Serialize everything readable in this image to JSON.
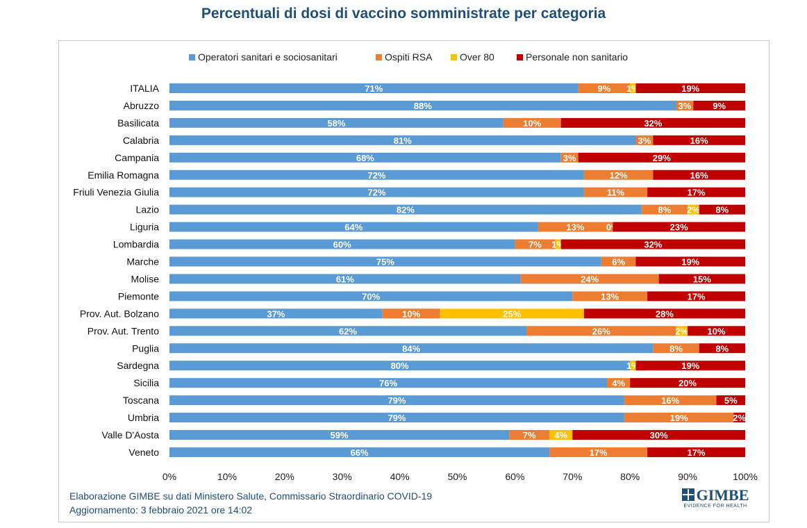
{
  "page": {
    "title": "Percentuali di dosi di vaccino somministrate per categoria",
    "source_line1": "Elaborazione GIMBE su dati Ministero Salute, Commissario Straordinario COVID-19",
    "source_line2": "Aggiornamento: 3 febbraio 2021 ore 14:02",
    "logo_word": "GIMBE",
    "logo_tagline": "EVIDENCE FOR HEALTH"
  },
  "chart_data": {
    "type": "bar",
    "orientation": "horizontal",
    "stacked": "percent",
    "title": "Percentuali di dosi di vaccino somministrate per categoria",
    "xlim": [
      0,
      100
    ],
    "x_ticks": [
      "0%",
      "10%",
      "20%",
      "30%",
      "40%",
      "50%",
      "60%",
      "70%",
      "80%",
      "90%",
      "100%"
    ],
    "legend_position": "top",
    "grid": false,
    "categories": [
      "ITALIA",
      "Abruzzo",
      "Basilicata",
      "Calabria",
      "Campania",
      "Emilia Romagna",
      "Friuli Venezia Giulia",
      "Lazio",
      "Liguria",
      "Lombardia",
      "Marche",
      "Molise",
      "Piemonte",
      "Prov. Aut. Bolzano",
      "Prov. Aut. Trento",
      "Puglia",
      "Sardegna",
      "Sicilia",
      "Toscana",
      "Umbria",
      "Valle D'Aosta",
      "Veneto"
    ],
    "series": [
      {
        "name": "Operatori sanitari e sociosanitari",
        "color": "#5b9bd5",
        "values": [
          71,
          88,
          58,
          81,
          68,
          72,
          72,
          82,
          64,
          60,
          75,
          61,
          70,
          37,
          62,
          84,
          80,
          76,
          79,
          79,
          59,
          66
        ]
      },
      {
        "name": "Ospiti RSA",
        "color": "#ed7d31",
        "values": [
          9,
          3,
          10,
          3,
          3,
          12,
          11,
          8,
          13,
          7,
          6,
          24,
          13,
          10,
          26,
          8,
          0,
          4,
          16,
          19,
          7,
          17
        ]
      },
      {
        "name": "Over 80",
        "color": "#ffc000",
        "values": [
          1,
          0,
          0,
          0,
          0,
          0,
          0,
          2,
          0,
          1,
          0,
          0,
          0,
          25,
          2,
          0,
          1,
          0,
          0,
          0,
          4,
          0
        ]
      },
      {
        "name": "Personale non sanitario",
        "color": "#c00000",
        "values": [
          19,
          9,
          32,
          16,
          29,
          16,
          17,
          8,
          23,
          32,
          19,
          15,
          17,
          28,
          10,
          8,
          19,
          20,
          5,
          2,
          30,
          17
        ]
      }
    ],
    "data_labels": [
      [
        "71%",
        "9%",
        "1%",
        "19%"
      ],
      [
        "88%",
        "3%",
        "",
        "9%"
      ],
      [
        "58%",
        "10%",
        "",
        "32%"
      ],
      [
        "81%",
        "3%",
        "",
        "16%"
      ],
      [
        "68%",
        "3%",
        "",
        "29%"
      ],
      [
        "72%",
        "12%",
        "",
        "16%"
      ],
      [
        "72%",
        "11%",
        "",
        "17%"
      ],
      [
        "82%",
        "8%",
        "2%",
        "8%"
      ],
      [
        "64%",
        "13%",
        "0%",
        "23%"
      ],
      [
        "60%",
        "7%",
        "1%",
        "32%"
      ],
      [
        "75%",
        "6%",
        "",
        "19%"
      ],
      [
        "61%",
        "24%",
        "",
        "15%"
      ],
      [
        "70%",
        "13%",
        "",
        "17%"
      ],
      [
        "37%",
        "10%",
        "25%",
        "28%"
      ],
      [
        "62%",
        "26%",
        "2%",
        "10%"
      ],
      [
        "84%",
        "8%",
        "",
        "8%"
      ],
      [
        "80%",
        "",
        "1%",
        "19%"
      ],
      [
        "76%",
        "4%",
        "",
        "20%"
      ],
      [
        "79%",
        "16%",
        "",
        "5%"
      ],
      [
        "79%",
        "19%",
        "",
        "2%"
      ],
      [
        "59%",
        "7%",
        "4%",
        "30%"
      ],
      [
        "66%",
        "17%",
        "",
        "17%"
      ]
    ]
  }
}
